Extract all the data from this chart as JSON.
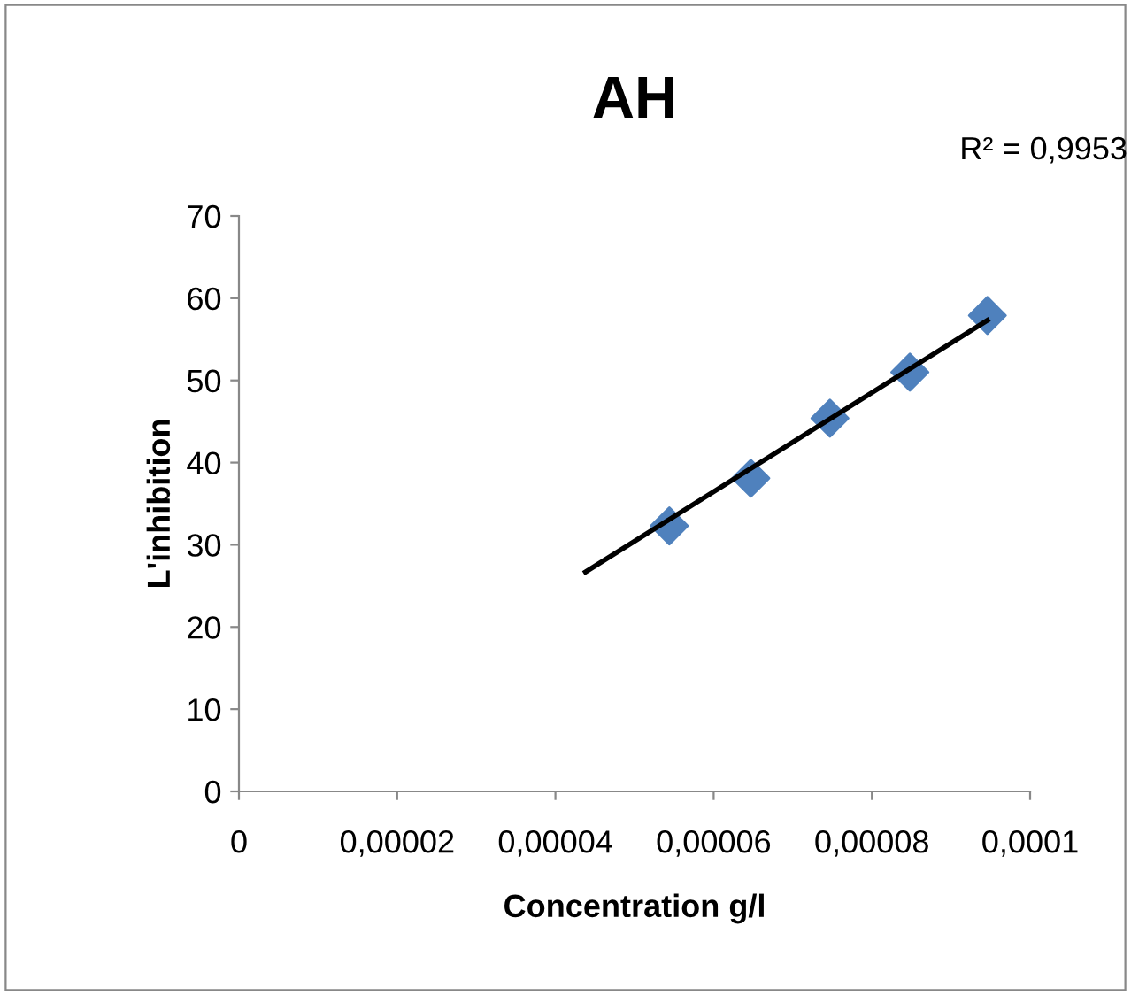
{
  "chart_data": {
    "type": "scatter",
    "title": "AH",
    "xlabel": "Concentration g/l",
    "ylabel": "L'inhibition",
    "series": [
      {
        "color": "#4f81bd",
        "marker": "diamond",
        "x": [
          5.44e-05,
          6.47e-05,
          7.47e-05,
          8.48e-05,
          9.46e-05
        ],
        "values": [
          32.3,
          38.1,
          45.4,
          51.0,
          57.9
        ]
      },
      {
        "type": "line",
        "color": "#000000",
        "marker": "none",
        "x": [
          4.38e-05,
          9.46e-05
        ],
        "values": [
          26.7,
          57.3
        ]
      }
    ],
    "annotations": [
      "R² = 0,9953"
    ],
    "xlim": [
      0,
      0.0001
    ],
    "xticks": [
      {
        "value": 0,
        "label": "0"
      },
      {
        "value": 2e-05,
        "label": "0,00002"
      },
      {
        "value": 4e-05,
        "label": "0,00004"
      },
      {
        "value": 6e-05,
        "label": "0,00006"
      },
      {
        "value": 8e-05,
        "label": "0,00008"
      },
      {
        "value": 0.0001,
        "label": "0,0001"
      }
    ],
    "ylim": [
      0,
      70
    ],
    "yticks": [
      0,
      10,
      20,
      30,
      40,
      50,
      60,
      70
    ],
    "grid": false,
    "legend": false
  }
}
